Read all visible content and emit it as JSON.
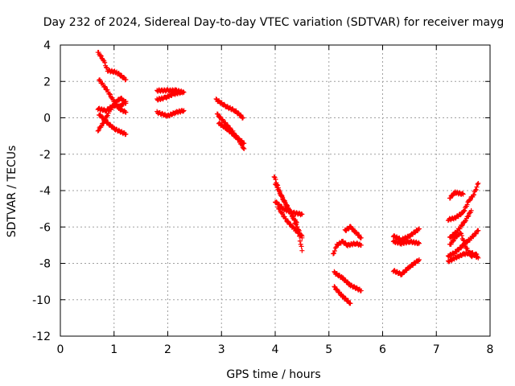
{
  "chart_data": {
    "type": "scatter",
    "title": "Day 232 of 2024, Sidereal Day-to-day VTEC variation (SDTVAR) for receiver mayg",
    "xlabel": "GPS time / hours",
    "ylabel": "SDTVAR / TECUs",
    "xlim": [
      0,
      8
    ],
    "ylim": [
      -12,
      4
    ],
    "xticks": [
      0,
      1,
      2,
      3,
      4,
      5,
      6,
      7,
      8
    ],
    "yticks": [
      -12,
      -10,
      -8,
      -6,
      -4,
      -2,
      0,
      2,
      4
    ],
    "grid": true,
    "marker": "plus",
    "color": "#ff0000",
    "segments": [
      {
        "points": [
          [
            0.7,
            3.6
          ],
          [
            0.8,
            3.2
          ],
          [
            0.88,
            2.6
          ],
          [
            1.05,
            2.5
          ],
          [
            1.22,
            2.1
          ]
        ]
      },
      {
        "points": [
          [
            0.72,
            2.1
          ],
          [
            0.85,
            1.6
          ],
          [
            0.98,
            1.0
          ],
          [
            1.1,
            0.5
          ],
          [
            1.22,
            0.3
          ]
        ]
      },
      {
        "points": [
          [
            0.7,
            0.5
          ],
          [
            0.85,
            0.4
          ],
          [
            1.0,
            0.7
          ],
          [
            1.1,
            0.6
          ],
          [
            1.22,
            0.9
          ]
        ]
      },
      {
        "points": [
          [
            0.72,
            0.2
          ],
          [
            0.85,
            -0.2
          ],
          [
            1.0,
            -0.6
          ],
          [
            1.22,
            -0.9
          ]
        ]
      },
      {
        "points": [
          [
            0.7,
            -0.7
          ],
          [
            0.82,
            -0.2
          ],
          [
            0.92,
            0.4
          ],
          [
            1.02,
            0.8
          ],
          [
            1.12,
            1.1
          ],
          [
            1.22,
            0.8
          ]
        ]
      },
      {
        "points": [
          [
            1.8,
            1.5
          ],
          [
            2.0,
            1.5
          ],
          [
            2.15,
            1.5
          ],
          [
            2.3,
            1.4
          ]
        ]
      },
      {
        "points": [
          [
            1.8,
            1.0
          ],
          [
            1.95,
            1.1
          ],
          [
            2.1,
            1.3
          ],
          [
            2.25,
            1.4
          ]
        ]
      },
      {
        "points": [
          [
            1.8,
            0.3
          ],
          [
            2.0,
            0.1
          ],
          [
            2.15,
            0.3
          ],
          [
            2.3,
            0.4
          ]
        ]
      },
      {
        "points": [
          [
            2.9,
            1.0
          ],
          [
            3.1,
            0.6
          ],
          [
            3.25,
            0.4
          ],
          [
            3.4,
            0.0
          ]
        ]
      },
      {
        "points": [
          [
            2.92,
            0.2
          ],
          [
            3.1,
            -0.4
          ],
          [
            3.25,
            -0.9
          ],
          [
            3.42,
            -1.7
          ]
        ]
      },
      {
        "points": [
          [
            2.95,
            -0.3
          ],
          [
            3.1,
            -0.6
          ],
          [
            3.25,
            -1.0
          ],
          [
            3.42,
            -1.4
          ]
        ]
      },
      {
        "points": [
          [
            3.98,
            -3.2
          ],
          [
            4.1,
            -4.2
          ],
          [
            4.25,
            -5.0
          ],
          [
            4.4,
            -5.8
          ],
          [
            4.5,
            -7.3
          ]
        ]
      },
      {
        "points": [
          [
            4.0,
            -3.6
          ],
          [
            4.15,
            -4.5
          ],
          [
            4.3,
            -5.3
          ],
          [
            4.5,
            -6.6
          ]
        ]
      },
      {
        "points": [
          [
            4.0,
            -4.6
          ],
          [
            4.15,
            -5.0
          ],
          [
            4.3,
            -5.2
          ],
          [
            4.5,
            -5.3
          ]
        ]
      },
      {
        "points": [
          [
            4.05,
            -4.9
          ],
          [
            4.2,
            -5.6
          ],
          [
            4.35,
            -6.1
          ],
          [
            4.5,
            -6.5
          ]
        ]
      },
      {
        "points": [
          [
            5.08,
            -7.5
          ],
          [
            5.15,
            -7.0
          ],
          [
            5.25,
            -6.8
          ],
          [
            5.35,
            -7.0
          ],
          [
            5.5,
            -6.9
          ],
          [
            5.6,
            -7.0
          ]
        ]
      },
      {
        "points": [
          [
            5.3,
            -6.2
          ],
          [
            5.4,
            -6.0
          ],
          [
            5.5,
            -6.3
          ],
          [
            5.6,
            -6.6
          ]
        ]
      },
      {
        "points": [
          [
            5.1,
            -8.5
          ],
          [
            5.25,
            -8.8
          ],
          [
            5.4,
            -9.2
          ],
          [
            5.6,
            -9.5
          ]
        ]
      },
      {
        "points": [
          [
            5.1,
            -9.3
          ],
          [
            5.25,
            -9.8
          ],
          [
            5.4,
            -10.2
          ]
        ]
      },
      {
        "points": [
          [
            6.2,
            -6.8
          ],
          [
            6.35,
            -6.9
          ],
          [
            6.5,
            -6.8
          ],
          [
            6.68,
            -6.9
          ]
        ]
      },
      {
        "points": [
          [
            6.2,
            -6.5
          ],
          [
            6.35,
            -6.7
          ],
          [
            6.5,
            -6.5
          ],
          [
            6.68,
            -6.1
          ]
        ]
      },
      {
        "points": [
          [
            6.2,
            -8.4
          ],
          [
            6.35,
            -8.6
          ],
          [
            6.5,
            -8.2
          ],
          [
            6.68,
            -7.8
          ]
        ]
      },
      {
        "points": [
          [
            7.22,
            -5.6
          ],
          [
            7.35,
            -5.5
          ],
          [
            7.5,
            -5.2
          ],
          [
            7.6,
            -4.6
          ],
          [
            7.7,
            -4.2
          ],
          [
            7.78,
            -3.6
          ]
        ]
      },
      {
        "points": [
          [
            7.25,
            -4.4
          ],
          [
            7.35,
            -4.1
          ],
          [
            7.5,
            -4.2
          ]
        ]
      },
      {
        "points": [
          [
            7.22,
            -7.6
          ],
          [
            7.35,
            -7.4
          ],
          [
            7.5,
            -7.0
          ],
          [
            7.65,
            -6.6
          ],
          [
            7.78,
            -6.2
          ]
        ]
      },
      {
        "points": [
          [
            7.22,
            -7.9
          ],
          [
            7.35,
            -7.7
          ],
          [
            7.5,
            -7.5
          ],
          [
            7.65,
            -7.4
          ],
          [
            7.78,
            -7.7
          ]
        ]
      },
      {
        "points": [
          [
            7.25,
            -7.0
          ],
          [
            7.35,
            -6.6
          ],
          [
            7.45,
            -6.3
          ],
          [
            7.55,
            -7.1
          ],
          [
            7.65,
            -7.6
          ],
          [
            7.75,
            -7.5
          ]
        ]
      },
      {
        "points": [
          [
            7.25,
            -6.6
          ],
          [
            7.4,
            -6.2
          ],
          [
            7.55,
            -5.6
          ],
          [
            7.65,
            -5.1
          ]
        ]
      }
    ]
  }
}
